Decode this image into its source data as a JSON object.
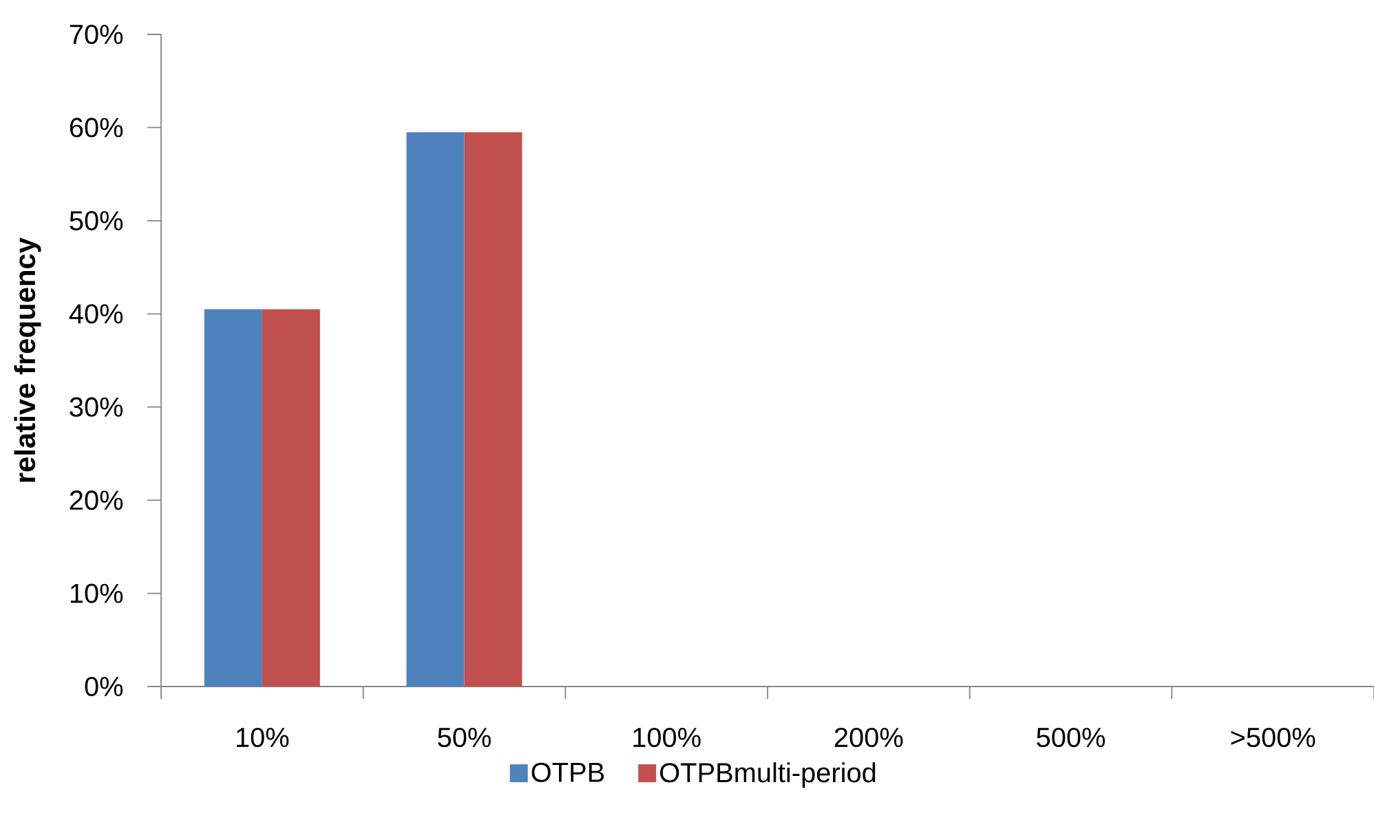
{
  "chart_data": {
    "type": "bar",
    "ylabel": "relative frequency",
    "categories": [
      "10%",
      "50%",
      "100%",
      "200%",
      "500%",
      ">500%"
    ],
    "series": [
      {
        "name": "OTPB",
        "color": "#4f81bd",
        "values": [
          40.5,
          59.5,
          0,
          0,
          0,
          0
        ]
      },
      {
        "name": "OTPBmulti-period",
        "color": "#c0504d",
        "values": [
          40.5,
          59.5,
          0,
          0,
          0,
          0
        ]
      }
    ],
    "ylim": [
      0,
      70
    ],
    "yticks": [
      {
        "value": 0,
        "label": "0%"
      },
      {
        "value": 10,
        "label": "10%"
      },
      {
        "value": 20,
        "label": "20%"
      },
      {
        "value": 30,
        "label": "30%"
      },
      {
        "value": 40,
        "label": "40%"
      },
      {
        "value": 50,
        "label": "50%"
      },
      {
        "value": 60,
        "label": "60%"
      },
      {
        "value": 70,
        "label": "70%"
      }
    ],
    "legend": "bottom"
  }
}
